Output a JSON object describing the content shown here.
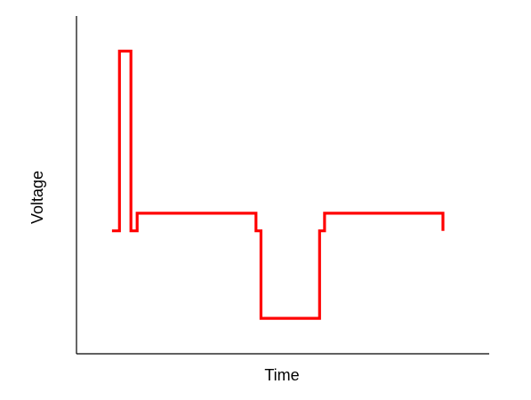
{
  "chart_data": {
    "type": "line",
    "title": "",
    "xlabel": "Time",
    "ylabel": "Voltage",
    "grid": false,
    "legend": "none",
    "xlim": [
      0,
      100
    ],
    "ylim": [
      0,
      100
    ],
    "series": [
      {
        "color": "#ff0000",
        "step": true,
        "x": [
          8.6,
          10.4,
          10.4,
          13.2,
          13.2,
          14.7,
          14.7,
          43.5,
          43.5,
          44.7,
          44.7,
          58.9,
          58.9,
          60.1,
          60.1,
          88.8,
          88.8
        ],
        "y": [
          36.4,
          36.4,
          89.6,
          89.6,
          36.4,
          36.4,
          41.6,
          41.6,
          36.4,
          36.4,
          10.5,
          10.5,
          36.4,
          36.4,
          41.6,
          41.6,
          36.4
        ]
      }
    ]
  }
}
